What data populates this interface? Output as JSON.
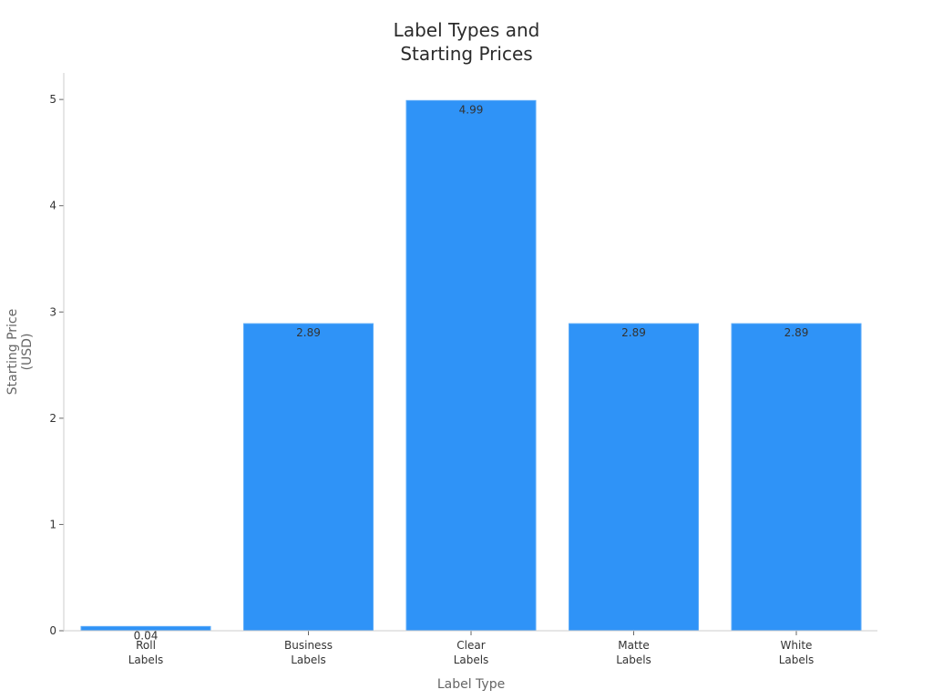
{
  "chart_data": {
    "type": "bar",
    "title_lines": [
      "Label Types and",
      "Starting Prices"
    ],
    "xlabel": "Label Type",
    "ylabel_lines": [
      "Starting Price",
      "(USD)"
    ],
    "categories": [
      [
        "Roll",
        "Labels"
      ],
      [
        "Business",
        "Labels"
      ],
      [
        "Clear",
        "Labels"
      ],
      [
        "Matte",
        "Labels"
      ],
      [
        "White",
        "Labels"
      ]
    ],
    "values": [
      0.04,
      2.89,
      4.99,
      2.89,
      2.89
    ],
    "data_labels": [
      "0.04",
      "2.89",
      "4.99",
      "2.89",
      "2.89"
    ],
    "ylim": [
      0,
      5.25
    ],
    "yticks": [
      0,
      1,
      2,
      3,
      4,
      5
    ],
    "grid": false,
    "legend": "none",
    "bar_color": "#2f93f7"
  }
}
